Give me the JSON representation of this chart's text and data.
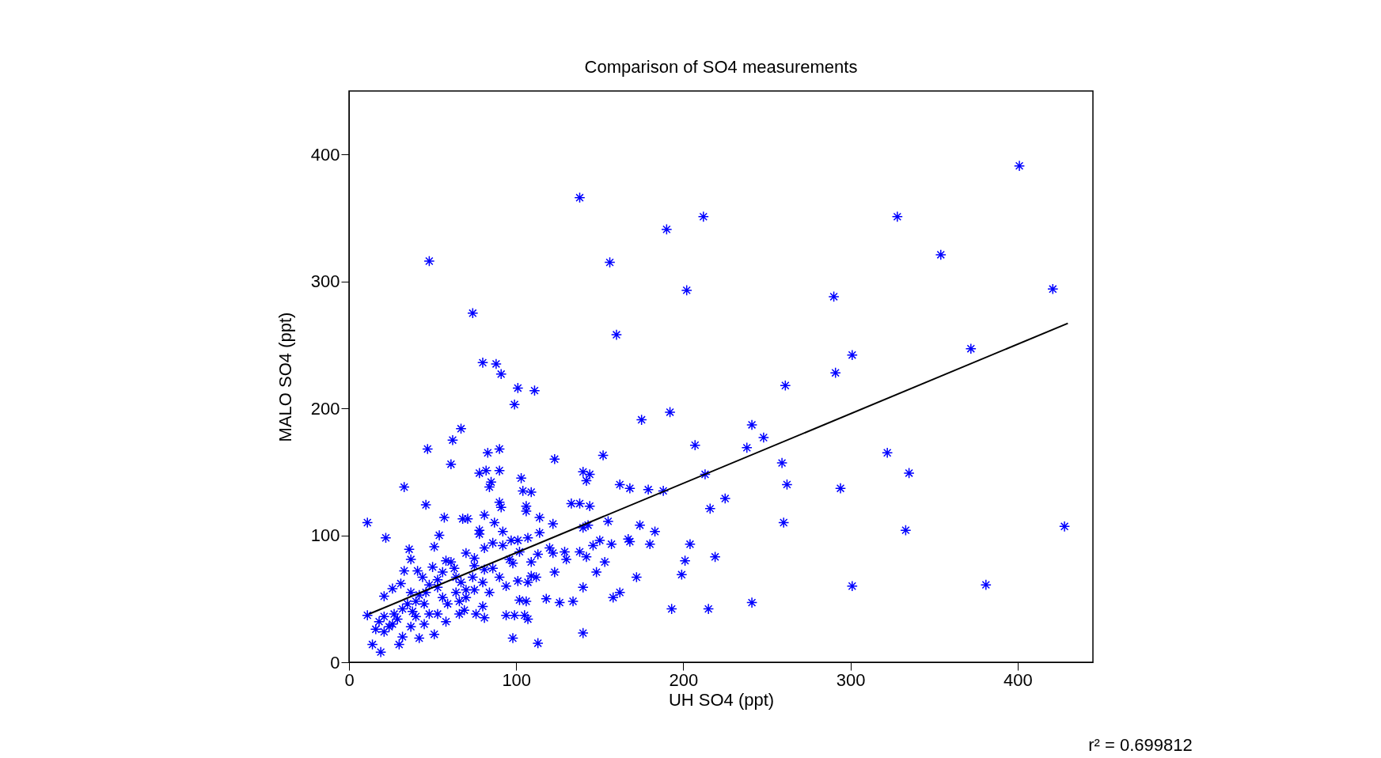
{
  "chart_data": {
    "type": "scatter",
    "title": "Comparison of SO4 measurements",
    "xlabel": "UH SO4 (ppt)",
    "ylabel": "MALO SO4 (ppt)",
    "xlim": [
      0,
      445
    ],
    "ylim": [
      0,
      450
    ],
    "xticks": [
      0,
      100,
      200,
      300,
      400
    ],
    "yticks": [
      0,
      100,
      200,
      300,
      400
    ],
    "grid": false,
    "annotations": [
      "r² = 0.699812"
    ],
    "series": [
      {
        "color": "#0000ff",
        "marker": "cross",
        "x": [
          401,
          138,
          212,
          328,
          190,
          48,
          156,
          354,
          421,
          202,
          290,
          74,
          160,
          372,
          301,
          80,
          88,
          91,
          291,
          261,
          101,
          111,
          99,
          192,
          175,
          241,
          248,
          207,
          238,
          322,
          47,
          83,
          90,
          152,
          123,
          259,
          61,
          67,
          62,
          140,
          144,
          142,
          213,
          335,
          188,
          225,
          216,
          260,
          333,
          428,
          183,
          204,
          201,
          219,
          199,
          301,
          381,
          193,
          215,
          241,
          294,
          262,
          22,
          33,
          46,
          57,
          54,
          51,
          36,
          37,
          68,
          71,
          81,
          87,
          78,
          78,
          90,
          91,
          92,
          86,
          92,
          81,
          70,
          58,
          61,
          75,
          75,
          81,
          86,
          96,
          98,
          97,
          101,
          107,
          114,
          102,
          109,
          113,
          120,
          122,
          114,
          106,
          106,
          104,
          109,
          103,
          85,
          84,
          78,
          82,
          90,
          133,
          138,
          144,
          140,
          143,
          155,
          162,
          168,
          179,
          174,
          150,
          146,
          157,
          167,
          168,
          180,
          138,
          142,
          129,
          130,
          122,
          153,
          172,
          148,
          140,
          123,
          109,
          112,
          107,
          101,
          94,
          90,
          118,
          126,
          134,
          158,
          162,
          102,
          106,
          94,
          99,
          105,
          107,
          140,
          98,
          113,
          80,
          84,
          75,
          80,
          76,
          81,
          69,
          66,
          70,
          64,
          63,
          56,
          53,
          48,
          50,
          44,
          41,
          33,
          31,
          26,
          21,
          11,
          19,
          14,
          30,
          42,
          51,
          32,
          16,
          21,
          26,
          37,
          45,
          40,
          48,
          53,
          58,
          59,
          56,
          45,
          40,
          35,
          32,
          27,
          21,
          18,
          24,
          29,
          38,
          42,
          64,
          66,
          70,
          74,
          67,
          53,
          46,
          37,
          11
        ],
        "values": [
          391,
          366,
          351,
          351,
          341,
          316,
          315,
          321,
          294,
          293,
          288,
          275,
          258,
          247,
          242,
          236,
          235,
          227,
          228,
          218,
          216,
          214,
          203,
          197,
          191,
          187,
          177,
          171,
          169,
          165,
          168,
          165,
          168,
          163,
          160,
          157,
          156,
          184,
          175,
          150,
          148,
          143,
          148,
          149,
          135,
          129,
          121,
          110,
          104,
          107,
          103,
          93,
          80,
          83,
          69,
          60,
          61,
          42,
          42,
          47,
          137,
          140,
          98,
          138,
          124,
          114,
          100,
          91,
          89,
          81,
          113,
          113,
          116,
          110,
          104,
          101,
          126,
          122,
          103,
          94,
          92,
          90,
          86,
          80,
          79,
          82,
          76,
          73,
          74,
          81,
          78,
          96,
          96,
          98,
          102,
          87,
          79,
          85,
          90,
          109,
          114,
          123,
          119,
          135,
          134,
          145,
          142,
          138,
          149,
          151,
          151,
          125,
          125,
          123,
          106,
          108,
          111,
          140,
          137,
          136,
          108,
          96,
          92,
          93,
          97,
          95,
          93,
          87,
          83,
          87,
          81,
          86,
          79,
          67,
          71,
          59,
          71,
          68,
          67,
          63,
          64,
          60,
          67,
          50,
          47,
          48,
          51,
          55,
          49,
          48,
          37,
          37,
          37,
          34,
          23,
          19,
          15,
          63,
          55,
          57,
          44,
          38,
          35,
          41,
          38,
          57,
          67,
          74,
          71,
          65,
          61,
          75,
          67,
          72,
          72,
          62,
          58,
          52,
          37,
          8,
          14,
          14,
          19,
          22,
          20,
          26,
          24,
          30,
          28,
          30,
          36,
          38,
          38,
          32,
          46,
          51,
          46,
          48,
          46,
          42,
          38,
          36,
          32,
          28,
          34,
          40,
          53,
          55,
          48,
          51,
          67,
          63,
          59,
          55,
          55,
          110
        ]
      },
      {
        "type": "line",
        "color": "#000000",
        "x": [
          12,
          430
        ],
        "values": [
          38,
          267
        ]
      }
    ]
  }
}
